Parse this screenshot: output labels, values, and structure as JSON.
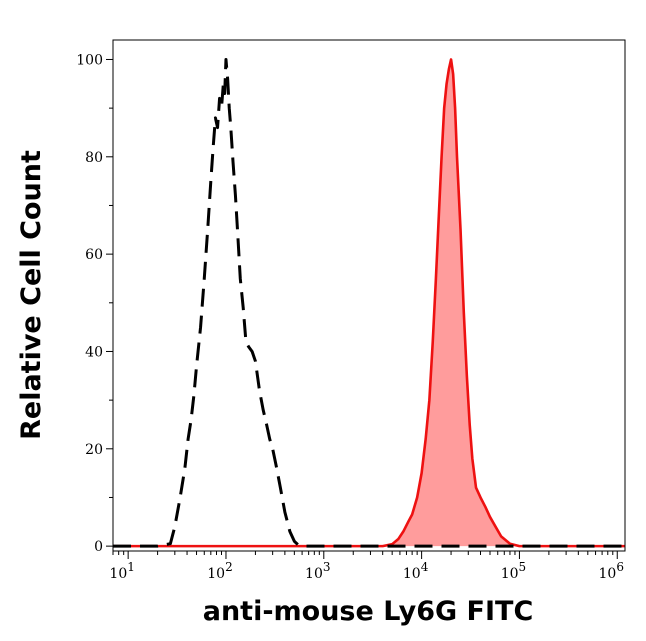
{
  "chart_data": {
    "type": "area",
    "title": "",
    "xlabel": "anti-mouse Ly6G FITC",
    "ylabel": "Relative Cell Count",
    "xscale": "log",
    "xlim": [
      7,
      1200000
    ],
    "ylim": [
      -1,
      104
    ],
    "grid": false,
    "legend": "none",
    "yticks": [
      {
        "value": 0,
        "label": "0"
      },
      {
        "value": 20,
        "label": "20"
      },
      {
        "value": 40,
        "label": "40"
      },
      {
        "value": 60,
        "label": "60"
      },
      {
        "value": 80,
        "label": "80"
      },
      {
        "value": 100,
        "label": "100"
      }
    ],
    "xticks": [
      {
        "value": 10,
        "base": "10",
        "exp": "1"
      },
      {
        "value": 100,
        "base": "10",
        "exp": "2"
      },
      {
        "value": 1000,
        "base": "10",
        "exp": "3"
      },
      {
        "value": 10000,
        "base": "10",
        "exp": "4"
      },
      {
        "value": 100000,
        "base": "10",
        "exp": "5"
      },
      {
        "value": 1000000,
        "base": "10",
        "exp": "6"
      }
    ],
    "series": [
      {
        "style": "dashed",
        "color": "#000000",
        "fill": "none",
        "x": [
          7,
          20,
          27,
          30,
          34,
          38,
          41,
          44,
          47,
          50,
          55,
          60,
          65,
          70,
          74,
          78,
          82,
          86,
          90,
          94,
          97,
          100,
          104,
          108,
          112,
          118,
          125,
          132,
          140,
          150,
          160,
          170,
          185,
          200,
          220,
          240,
          260,
          280,
          300,
          330,
          360,
          400,
          450,
          500,
          550,
          620,
          700,
          1000,
          100000,
          1200000
        ],
        "y": [
          0,
          0,
          0.5,
          4,
          10,
          16,
          22,
          26,
          31,
          37,
          45,
          55,
          65,
          75,
          82,
          88,
          86,
          92,
          90,
          95,
          93,
          100,
          96,
          90,
          86,
          79,
          72,
          64,
          55,
          49,
          42,
          41,
          40,
          38,
          32,
          28,
          25,
          22,
          20,
          16,
          12,
          7,
          3,
          1,
          0.2,
          0,
          0,
          0,
          0,
          0
        ]
      },
      {
        "style": "solid",
        "color": "#ee1111",
        "fill": "#ff9c9c",
        "x": [
          7,
          1000,
          4000,
          5000,
          5800,
          6500,
          7300,
          8000,
          9000,
          10000,
          11000,
          12000,
          13000,
          14000,
          15000,
          16000,
          17000,
          18000,
          19000,
          20000,
          21000,
          22000,
          23000,
          25000,
          27000,
          29000,
          31000,
          33000,
          36000,
          40000,
          45000,
          50000,
          57000,
          65000,
          80000,
          100000,
          1200000
        ],
        "y": [
          0,
          0,
          0,
          0.4,
          1.5,
          3,
          5,
          6.5,
          10,
          15,
          22,
          30,
          42,
          55,
          68,
          80,
          90,
          95,
          98,
          100,
          97,
          90,
          80,
          65,
          48,
          35,
          25,
          18,
          12,
          10,
          8,
          6,
          4,
          2,
          0.5,
          0,
          0
        ]
      }
    ]
  }
}
